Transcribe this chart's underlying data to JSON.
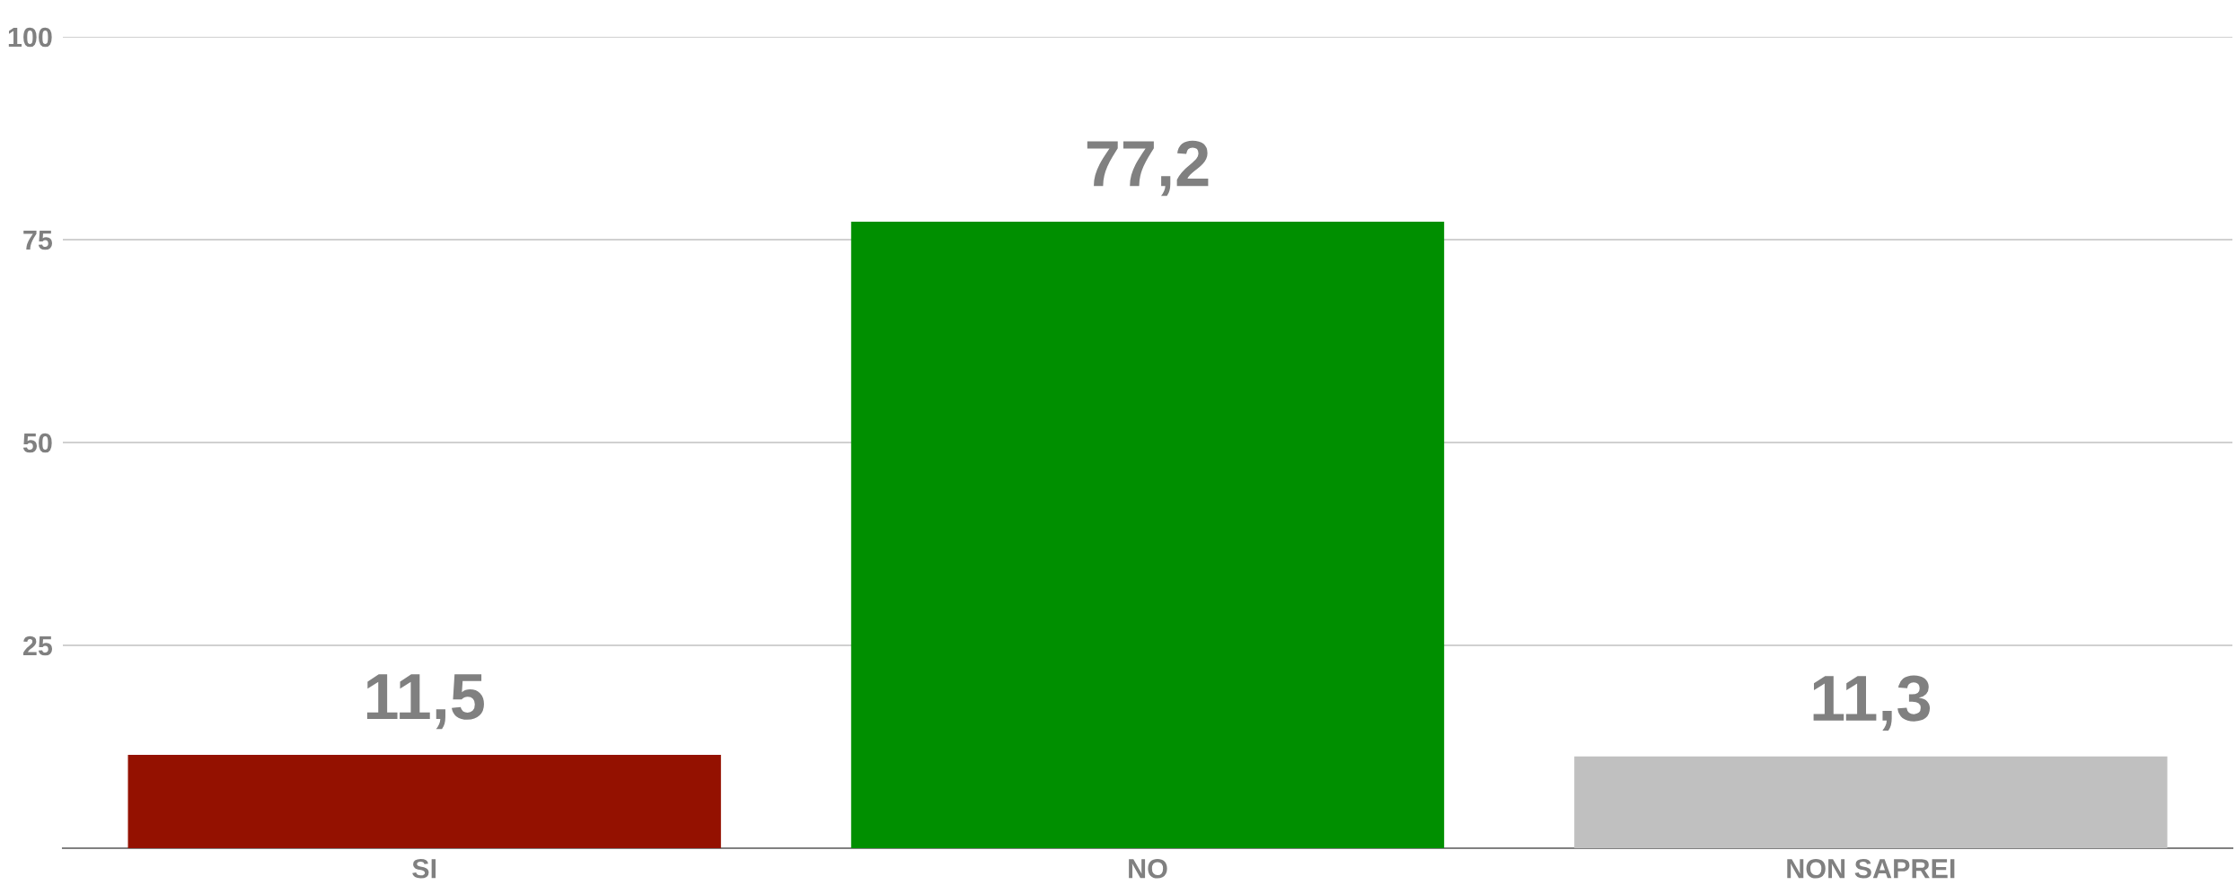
{
  "chart_data": {
    "type": "bar",
    "categories": [
      "SI",
      "NO",
      "NON SAPREI"
    ],
    "values": [
      11.5,
      77.2,
      11.3
    ],
    "colors": [
      "#941100",
      "#008f00",
      "#c0c0c0"
    ],
    "value_labels": [
      "11,5",
      "77,2",
      "11,3"
    ],
    "ylim": [
      0,
      100
    ],
    "yticks": [
      {
        "value": 0,
        "label": null
      },
      25,
      50,
      75,
      100
    ],
    "grid": "y"
  }
}
